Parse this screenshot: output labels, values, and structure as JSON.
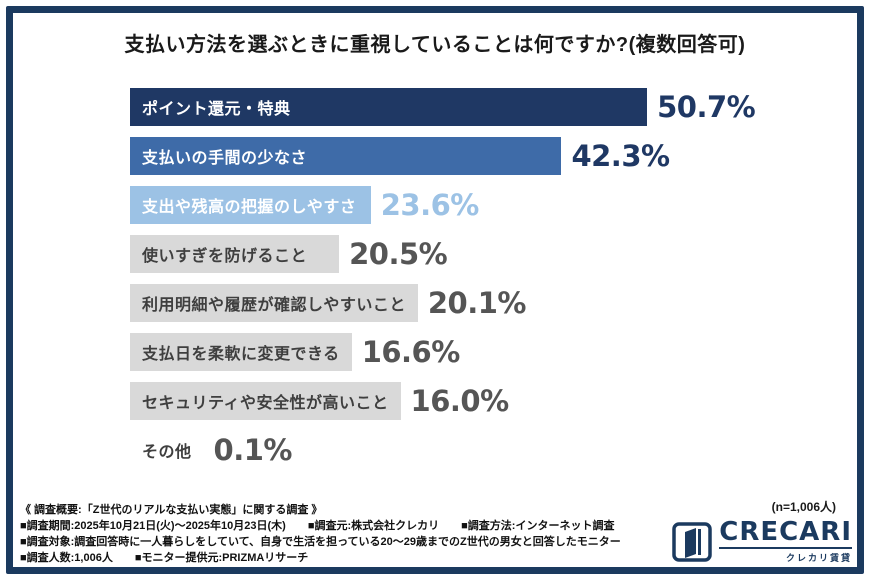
{
  "title": "支払い方法を選ぶときに重視していることは何ですか?(複数回答可)",
  "chart_data": {
    "type": "bar",
    "orientation": "horizontal",
    "title": "支払い方法を選ぶときに重視していることは何ですか?(複数回答可)",
    "categories": [
      "ポイント還元・特典",
      "支払いの手間の少なさ",
      "支出や残高の把握のしやすさ",
      "使いすぎを防げること",
      "利用明細や履歴が確認しやすいこと",
      "支払日を柔軟に変更できる",
      "セキュリティや安全性が高いこと",
      "その他"
    ],
    "values": [
      50.7,
      42.3,
      23.6,
      20.5,
      20.1,
      16.6,
      16.0,
      0.1
    ],
    "value_labels": [
      "50.7%",
      "42.3%",
      "23.6%",
      "20.5%",
      "20.1%",
      "16.6%",
      "16.0%",
      "0.1%"
    ],
    "xlim": [
      0,
      55
    ],
    "grid": false,
    "legend": null,
    "bar_colors": [
      "#1F3864",
      "#3E6BA8",
      "#9CC2E5",
      "#D9D9D9",
      "#D9D9D9",
      "#D9D9D9",
      "#D9D9D9",
      "transparent"
    ],
    "label_text_colors": [
      "#FFFFFF",
      "#FFFFFF",
      "#FFFFFF",
      "#3F3F3F",
      "#3F3F3F",
      "#3F3F3F",
      "#3F3F3F",
      "#3F3F3F"
    ],
    "value_text_colors": [
      "#1F3864",
      "#1F3864",
      "#9CC2E5",
      "#555555",
      "#555555",
      "#555555",
      "#555555",
      "#555555"
    ]
  },
  "footer": {
    "n_note": "(n=1,006人)",
    "line1": "《 調査概要:「Z世代のリアルな支払い実態」に関する調査 》",
    "line2": "■調査期間:2025年10月21日(火)〜2025年10月23日(木)　　■調査元:株式会社クレカリ　　■調査方法:インターネット調査",
    "line3": "■調査対象:調査回答時に一人暮らしをしていて、自身で生活を担っている20〜29歳までのZ世代の男女と回答したモニター",
    "line4": "■調査人数:1,006人　　■モニター提供元:PRIZMAリサーチ"
  },
  "logo": {
    "wordmark": "CRECARI",
    "subtitle": "クレカリ賃貸"
  },
  "colors": {
    "frame": "#1B3A5F",
    "navy": "#1F3864",
    "background": "#FFFFFF"
  }
}
